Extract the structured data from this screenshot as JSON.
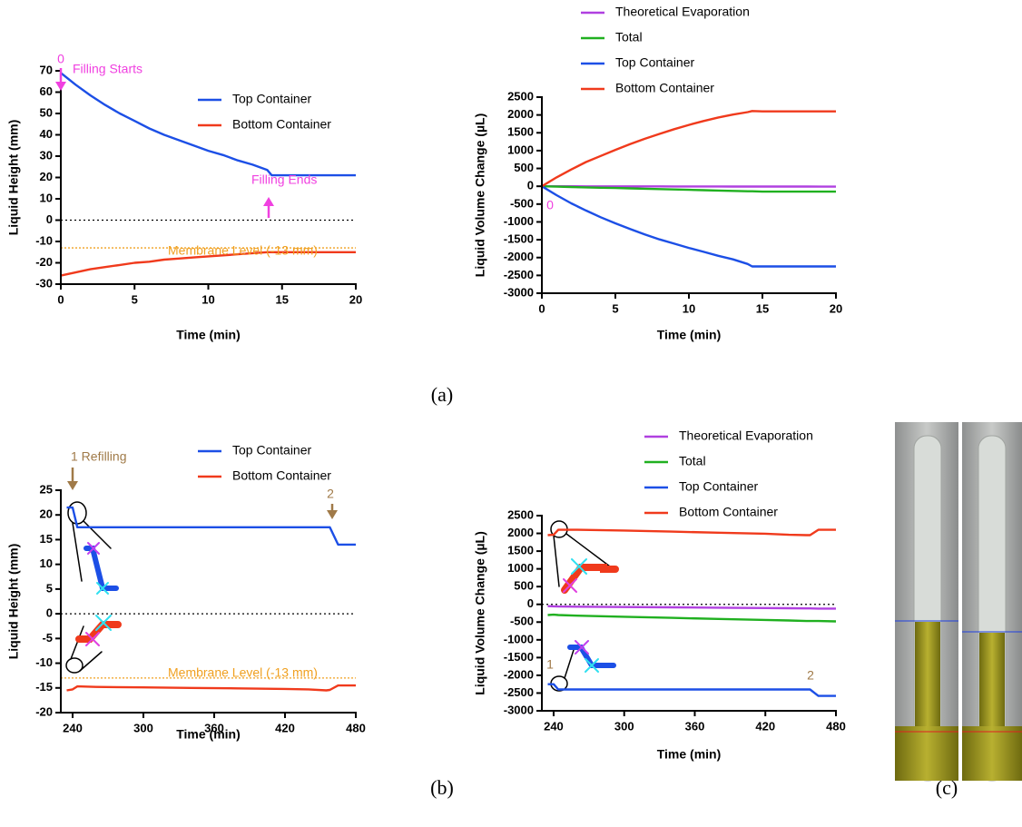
{
  "chart_data": [
    {
      "type": "line",
      "y_label": "Liquid Height (mm)",
      "x_label": "Time (min)",
      "xlim": [
        0,
        20
      ],
      "xticks": [
        0,
        5,
        10,
        15,
        20
      ],
      "ylim": [
        -30,
        70
      ],
      "yticks": [
        -30,
        -20,
        -10,
        0,
        10,
        20,
        30,
        40,
        50,
        60,
        70
      ],
      "zero_line": true,
      "membrane_level": -13,
      "membrane_color": "#f0a020",
      "x": [
        0,
        1,
        2,
        3,
        4,
        5,
        6,
        7,
        8,
        9,
        10,
        11,
        12,
        13,
        14,
        14.3,
        15,
        16,
        17,
        18,
        19,
        20
      ],
      "series": [
        {
          "name": "Top Container",
          "color": "#1c4fe6",
          "values": [
            69,
            63.5,
            58.5,
            54,
            50,
            46.5,
            43,
            40,
            37.5,
            35,
            32.5,
            30.5,
            28,
            26,
            23.5,
            21,
            21,
            21,
            21,
            21,
            21,
            21
          ]
        },
        {
          "name": "Bottom Container",
          "color": "#f03a1c",
          "values": [
            -26,
            -24.5,
            -23,
            -22,
            -21,
            -20,
            -19.5,
            -18.5,
            -18,
            -17.5,
            -17,
            -16.5,
            -16,
            -15.5,
            -15,
            -15,
            -15,
            -15,
            -15,
            -15,
            -15,
            -15
          ]
        }
      ],
      "annotations": [
        {
          "text": "0",
          "color": "#f040e0"
        },
        {
          "text": "Filling Starts",
          "color": "#f040e0"
        },
        {
          "text": "Filling Ends",
          "color": "#f040e0"
        },
        {
          "text": "Membrane Level (-13 mm)",
          "color": "#f0a020"
        }
      ]
    },
    {
      "type": "line",
      "y_label": "Liquid Volume Change (µL)",
      "x_label": "Time (min)",
      "xlim": [
        0,
        20
      ],
      "xticks": [
        0,
        5,
        10,
        15,
        20
      ],
      "ylim": [
        -3000,
        2500
      ],
      "yticks": [
        -3000,
        -2500,
        -2000,
        -1500,
        -1000,
        -500,
        0,
        500,
        1000,
        1500,
        2000,
        2500
      ],
      "zero_line": true,
      "x": [
        0,
        1,
        2,
        3,
        4,
        5,
        6,
        7,
        8,
        9,
        10,
        11,
        12,
        13,
        14,
        14.3,
        15,
        16,
        17,
        18,
        19,
        20
      ],
      "series": [
        {
          "name": "Theoretical Evaporation",
          "color": "#b040e0",
          "values": [
            0,
            -1,
            -1,
            -2,
            -2,
            -3,
            -3,
            -4,
            -4,
            -5,
            -5,
            -6,
            -6,
            -7,
            -7,
            -7,
            -8,
            -8,
            -9,
            -9,
            -10,
            -10
          ]
        },
        {
          "name": "Total",
          "color": "#20b020",
          "values": [
            0,
            -10,
            -20,
            -30,
            -40,
            -50,
            -60,
            -70,
            -80,
            -90,
            -100,
            -110,
            -120,
            -130,
            -140,
            -140,
            -150,
            -150,
            -150,
            -150,
            -150,
            -150
          ]
        },
        {
          "name": "Top Container",
          "color": "#1c4fe6",
          "values": [
            0,
            -250,
            -480,
            -680,
            -870,
            -1040,
            -1200,
            -1350,
            -1490,
            -1610,
            -1730,
            -1840,
            -1950,
            -2050,
            -2180,
            -2250,
            -2250,
            -2250,
            -2250,
            -2250,
            -2250,
            -2250
          ]
        },
        {
          "name": "Bottom Container",
          "color": "#f03a1c",
          "values": [
            0,
            250,
            470,
            680,
            850,
            1020,
            1180,
            1330,
            1470,
            1600,
            1720,
            1830,
            1930,
            2010,
            2080,
            2110,
            2100,
            2100,
            2100,
            2100,
            2100,
            2100
          ]
        }
      ],
      "annotations": [
        {
          "text": "0",
          "color": "#f040e0"
        }
      ]
    },
    {
      "type": "line",
      "y_label": "Liquid Height (mm)",
      "x_label": "Time (min)",
      "xlim": [
        230,
        480
      ],
      "xticks": [
        240,
        300,
        360,
        420,
        480
      ],
      "ylim": [
        -20,
        25
      ],
      "yticks": [
        -20,
        -15,
        -10,
        -5,
        0,
        5,
        10,
        15,
        20,
        25
      ],
      "zero_line": true,
      "membrane_level": -13,
      "membrane_color": "#f0a020",
      "x": [
        235,
        240,
        244,
        260,
        300,
        340,
        380,
        420,
        440,
        455,
        458,
        465,
        480
      ],
      "series": [
        {
          "name": "Top Container",
          "color": "#1c4fe6",
          "values": [
            21.5,
            21.5,
            17.5,
            17.5,
            17.5,
            17.5,
            17.5,
            17.5,
            17.5,
            17.5,
            17.5,
            14,
            14
          ]
        },
        {
          "name": "Bottom Container",
          "color": "#f03a1c",
          "values": [
            -15.5,
            -15.3,
            -14.7,
            -14.8,
            -14.9,
            -15,
            -15.1,
            -15.2,
            -15.3,
            -15.5,
            -15.4,
            -14.5,
            -14.5
          ]
        }
      ],
      "annotations": [
        {
          "text": "1 Refilling",
          "color": "#a07a48"
        },
        {
          "text": "2",
          "color": "#a07a48"
        },
        {
          "text": "Membrane Level (-13 mm)",
          "color": "#f0a020"
        }
      ]
    },
    {
      "type": "line",
      "y_label": "Liquid Volume Change (µL)",
      "x_label": "Time (min)",
      "xlim": [
        230,
        480
      ],
      "xticks": [
        240,
        300,
        360,
        420,
        480
      ],
      "ylim": [
        -3000,
        2500
      ],
      "yticks": [
        -3000,
        -2500,
        -2000,
        -1500,
        -1000,
        -500,
        0,
        500,
        1000,
        1500,
        2000,
        2500
      ],
      "zero_line": true,
      "x": [
        235,
        240,
        244,
        260,
        300,
        340,
        380,
        420,
        440,
        455,
        458,
        465,
        480
      ],
      "series": [
        {
          "name": "Theoretical Evaporation",
          "color": "#b040e0",
          "values": [
            -50,
            -55,
            -60,
            -65,
            -75,
            -85,
            -95,
            -105,
            -110,
            -115,
            -115,
            -120,
            -120
          ]
        },
        {
          "name": "Total",
          "color": "#20b020",
          "values": [
            -300,
            -290,
            -300,
            -320,
            -350,
            -380,
            -410,
            -440,
            -455,
            -470,
            -470,
            -470,
            -480
          ]
        },
        {
          "name": "Top Container",
          "color": "#1c4fe6",
          "values": [
            -2250,
            -2250,
            -2400,
            -2400,
            -2400,
            -2400,
            -2400,
            -2400,
            -2400,
            -2400,
            -2400,
            -2580,
            -2580
          ]
        },
        {
          "name": "Bottom Container",
          "color": "#f03a1c",
          "values": [
            1950,
            1960,
            2100,
            2100,
            2080,
            2050,
            2020,
            1990,
            1960,
            1950,
            1950,
            2100,
            2100
          ]
        }
      ],
      "annotations": [
        {
          "text": "1",
          "color": "#a07a48"
        },
        {
          "text": "2",
          "color": "#a07a48"
        }
      ]
    }
  ],
  "panel_labels": [
    "(a)",
    "(b)",
    "(c)"
  ]
}
